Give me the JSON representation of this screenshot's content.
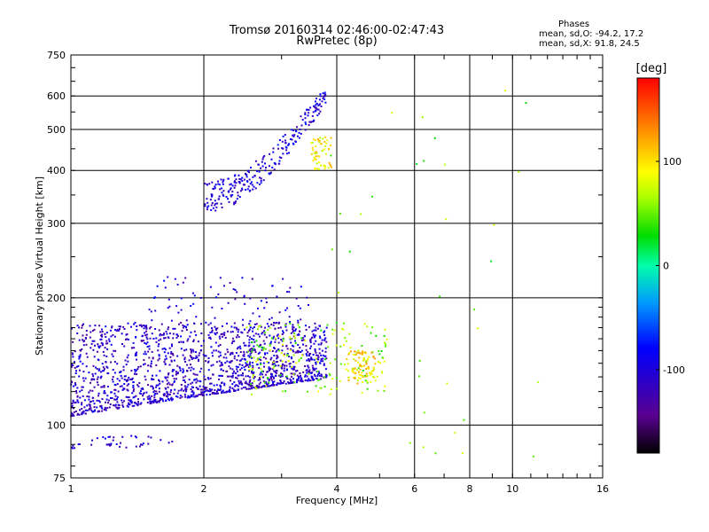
{
  "header": {
    "title_line1": "Tromsø 20160314 02:46:00-02:47:43",
    "title_line2": "RwPretec (8p)",
    "phases_title": "Phases",
    "phases_line1": "mean, sd,O: -94.2, 17.2",
    "phases_line2": "mean, sd,X:  91.8, 24.5"
  },
  "chart_data": {
    "type": "scatter",
    "xlabel": "Frequency [MHz]",
    "ylabel": "Stationary phase Virtual Height [km]",
    "xscale": "log",
    "yscale": "log",
    "xlim": [
      1,
      16
    ],
    "ylim": [
      75,
      750
    ],
    "xticks": [
      1,
      2,
      4,
      6,
      8,
      10,
      16
    ],
    "yticks": [
      75,
      100,
      200,
      300,
      400,
      500,
      600,
      750
    ],
    "grid": true,
    "colorbar": {
      "label": "[deg]",
      "range": [
        -180,
        180
      ],
      "ticks": [
        100,
        0,
        -100
      ]
    },
    "clusters": [
      {
        "name": "low_O",
        "x_range": [
          1.0,
          3.8
        ],
        "y_range": [
          100,
          175
        ],
        "phase": -110,
        "count": 1600
      },
      {
        "name": "low_upper",
        "x_range": [
          1.5,
          3.6
        ],
        "y_range": [
          175,
          225
        ],
        "phase": -105,
        "count": 80
      },
      {
        "name": "low_X",
        "x_range": [
          2.5,
          5.2
        ],
        "y_range": [
          118,
          175
        ],
        "phase": 60,
        "count": 180
      },
      {
        "name": "mid_X_blob",
        "x_range": [
          4.2,
          4.9
        ],
        "y_range": [
          125,
          150
        ],
        "phase": 100,
        "count": 90
      },
      {
        "name": "upper_O",
        "x_range": [
          2.0,
          3.8
        ],
        "y_range": [
          335,
          640
        ],
        "phase": -100,
        "count": 260
      },
      {
        "name": "upper_X",
        "x_range": [
          3.5,
          3.9
        ],
        "y_range": [
          400,
          480
        ],
        "phase": 95,
        "count": 60
      },
      {
        "name": "bottom_sparse",
        "x_range": [
          1.0,
          1.7
        ],
        "y_range": [
          88,
          95
        ],
        "phase": -105,
        "count": 40
      },
      {
        "name": "scattered",
        "x_range": [
          3.8,
          12.0
        ],
        "y_range": [
          80,
          660
        ],
        "phase": 50,
        "count": 35
      }
    ]
  }
}
